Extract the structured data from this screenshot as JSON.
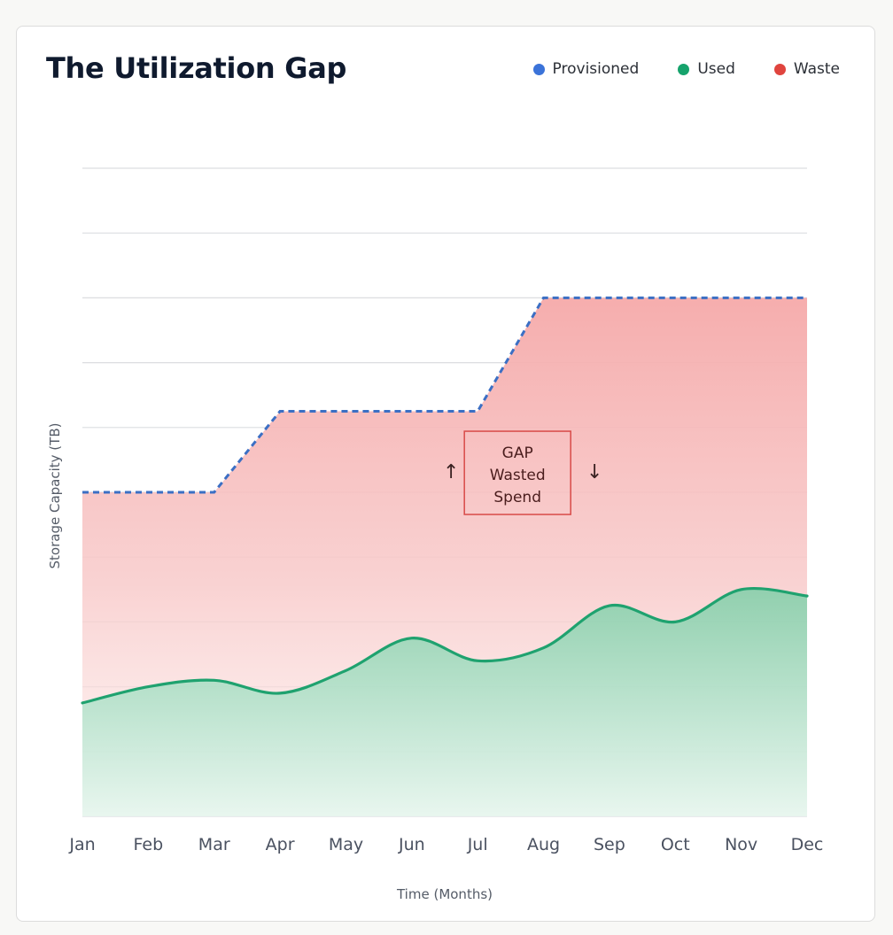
{
  "chart_data": {
    "type": "area",
    "title": "The Utilization Gap",
    "xlabel": "Time (Months)",
    "ylabel": "Storage Capacity (TB)",
    "categories": [
      "Jan",
      "Feb",
      "Mar",
      "Apr",
      "May",
      "Jun",
      "Jul",
      "Aug",
      "Sep",
      "Oct",
      "Nov",
      "Dec"
    ],
    "ylim": [
      0,
      100
    ],
    "grid": true,
    "y_tick_labels_shown": false,
    "legend": {
      "position": "top-right",
      "entries": [
        {
          "name": "Provisioned",
          "color": "#3b73d9"
        },
        {
          "name": "Used",
          "color": "#16a36c"
        },
        {
          "name": "Waste",
          "color": "#e0443e"
        }
      ]
    },
    "series": [
      {
        "name": "Provisioned",
        "style": "dashed-step",
        "values": [
          50,
          50,
          50,
          62.5,
          62.5,
          62.5,
          62.5,
          80,
          80,
          80,
          80,
          80
        ]
      },
      {
        "name": "Used",
        "style": "smooth-area",
        "values": [
          17.5,
          20,
          21,
          19,
          22.5,
          27.5,
          24,
          26,
          32.5,
          30,
          35,
          34
        ]
      }
    ],
    "annotation": {
      "lines": [
        "GAP",
        "Wasted",
        "Spend"
      ],
      "up_arrow": "↑",
      "down_arrow": "↓",
      "x_category": "Jul",
      "y_value": 53
    },
    "colors": {
      "provisioned_line": "#3b6fc4",
      "used_line": "#1fa26f",
      "used_fill": "#22a872",
      "waste_fill": "#f4a0a0",
      "grid": "#dcdde0",
      "annotation_border": "#d84a48"
    }
  }
}
